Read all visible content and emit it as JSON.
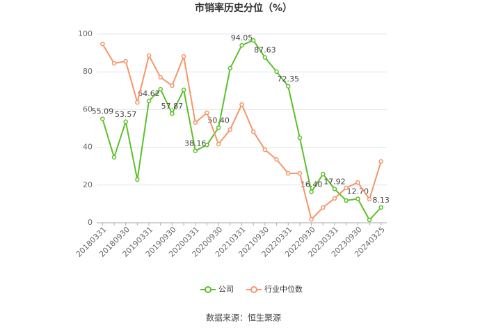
{
  "chart_data": {
    "type": "line",
    "title": "市销率历史分位（%）",
    "categories": [
      "20180331",
      null,
      "20180930",
      null,
      "20190331",
      null,
      "20190930",
      null,
      "20200331",
      null,
      "20200930",
      null,
      "20210331",
      null,
      "20210930",
      null,
      "20220331",
      null,
      "20220930",
      null,
      "20230331",
      null,
      "20230930",
      null,
      "20240325"
    ],
    "series": [
      {
        "name": "公司",
        "color": "#5cbf2a",
        "values": [
          55.09,
          34.7,
          53.57,
          22.9,
          64.62,
          70.8,
          57.87,
          70.5,
          38.16,
          41.3,
          50.4,
          81.9,
          94.05,
          96.7,
          87.63,
          80.1,
          72.35,
          45.0,
          16.4,
          25.8,
          17.92,
          11.8,
          12.7,
          1.5,
          8.13
        ],
        "value_labels": [
          "55.09",
          null,
          "53.57",
          null,
          "64.62",
          null,
          "57.87",
          null,
          "38.16",
          null,
          "50.40",
          null,
          "94.05",
          null,
          "87.63",
          null,
          "72.35",
          null,
          "16.40",
          null,
          "17.92",
          null,
          "12.70",
          null,
          "8.13"
        ]
      },
      {
        "name": "行业中位数",
        "color": "#f5956a",
        "values": [
          94.8,
          84.5,
          85.6,
          63.8,
          88.6,
          77.1,
          72.7,
          88.2,
          53.1,
          58.3,
          41.7,
          49.4,
          62.7,
          48.3,
          38.7,
          33.6,
          26.2,
          26.2,
          1.8,
          8.1,
          12.9,
          18.5,
          21.4,
          12.5,
          32.5
        ]
      }
    ],
    "ylim": [
      0,
      100
    ],
    "yticks": [
      0,
      20,
      40,
      60,
      80,
      100
    ],
    "grid": true,
    "source": "数据来源：恒生聚源"
  }
}
